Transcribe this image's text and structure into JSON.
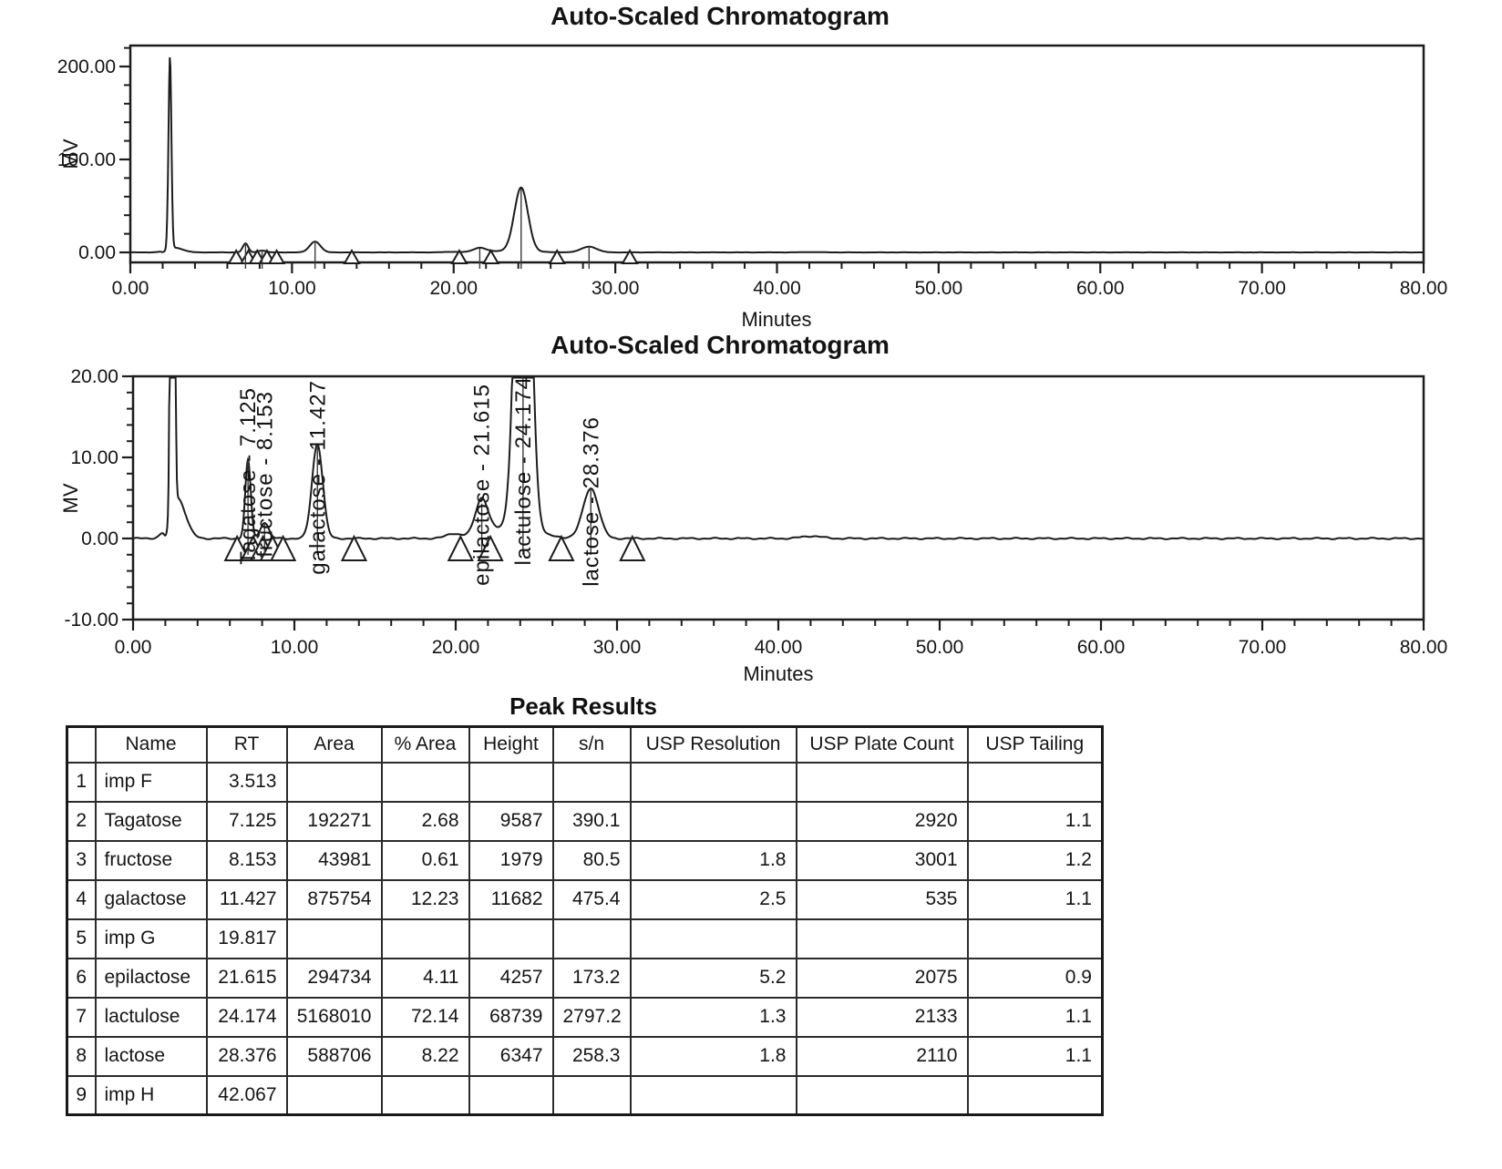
{
  "page": {
    "background": "#ffffff",
    "text_color": "#141414",
    "line_color": "#1c1c1c"
  },
  "chart_data": [
    {
      "type": "line",
      "title": "Auto-Scaled Chromatogram",
      "xlabel": "Minutes",
      "ylabel": "MV",
      "xlim": [
        0,
        80
      ],
      "ylim": [
        -10.8,
        222.5
      ],
      "grid": false,
      "legend": "none",
      "xticks": [
        {
          "v": 0,
          "label": "0.00"
        },
        {
          "v": 10,
          "label": "10.00"
        },
        {
          "v": 20,
          "label": "20.00"
        },
        {
          "v": 30,
          "label": "30.00"
        },
        {
          "v": 40,
          "label": "40.00"
        },
        {
          "v": 50,
          "label": "50.00"
        },
        {
          "v": 60,
          "label": "60.00"
        },
        {
          "v": 70,
          "label": "70.00"
        },
        {
          "v": 80,
          "label": "80.00"
        }
      ],
      "x_minor_step": 2,
      "yticks": [
        {
          "v": 0,
          "label": "0.00"
        },
        {
          "v": 100,
          "label": "100.00"
        },
        {
          "v": 200,
          "label": "200.00"
        }
      ],
      "y_minor_step": 20,
      "peak_labels": [
        {
          "text": "Tagatose - 7.125",
          "rt": 7.125
        },
        {
          "text": "fructose - 8.153",
          "rt": 8.153
        },
        {
          "text": "galactose - 11.427",
          "rt": 11.427
        },
        {
          "text": "epilactose - 21.615",
          "rt": 21.615
        },
        {
          "text": "lactulose - 24.174",
          "rt": 24.174
        },
        {
          "text": "lactose - 28.376",
          "rt": 28.376
        }
      ],
      "integration_markers_min": [
        6.55,
        7.3,
        7.85,
        8.45,
        9.05,
        13.7,
        20.35,
        22.3,
        26.4,
        30.9
      ],
      "trace_peaks": [
        {
          "rt": 2.05,
          "mv": -1.4,
          "sigma": 0.12
        },
        {
          "rt": 2.45,
          "mv": 207,
          "sigma": 0.09
        },
        {
          "rt": 2.75,
          "mv": 5,
          "sigma": 0.5
        },
        {
          "rt": 7.125,
          "mv": 9.6,
          "sigma": 0.17
        },
        {
          "rt": 8.153,
          "mv": 2.0,
          "sigma": 0.25
        },
        {
          "rt": 11.427,
          "mv": 11.7,
          "sigma": 0.33
        },
        {
          "rt": 19.817,
          "mv": 0.5,
          "sigma": 0.4
        },
        {
          "rt": 21.615,
          "mv": 4.3,
          "sigma": 0.38
        },
        {
          "rt": 23.3,
          "mv": 1.3,
          "sigma": 1.6
        },
        {
          "rt": 24.174,
          "mv": 68.7,
          "sigma": 0.42
        },
        {
          "rt": 28.376,
          "mv": 6.2,
          "sigma": 0.48
        },
        {
          "rt": 42.067,
          "mv": 0.3,
          "sigma": 0.6
        }
      ]
    },
    {
      "type": "line",
      "title": "Auto-Scaled Chromatogram",
      "xlabel": "Minutes",
      "ylabel": "MV",
      "xlim": [
        0,
        80
      ],
      "ylim": [
        -10,
        20
      ],
      "grid": false,
      "legend": "none",
      "xticks": [
        {
          "v": 0,
          "label": "0.00"
        },
        {
          "v": 10,
          "label": "10.00"
        },
        {
          "v": 20,
          "label": "20.00"
        },
        {
          "v": 30,
          "label": "30.00"
        },
        {
          "v": 40,
          "label": "40.00"
        },
        {
          "v": 50,
          "label": "50.00"
        },
        {
          "v": 60,
          "label": "60.00"
        },
        {
          "v": 70,
          "label": "70.00"
        },
        {
          "v": 80,
          "label": "80.00"
        }
      ],
      "x_minor_step": 2,
      "yticks": [
        {
          "v": -10,
          "label": "-10.00"
        },
        {
          "v": 0,
          "label": "0.00"
        },
        {
          "v": 10,
          "label": "10.00"
        },
        {
          "v": 20,
          "label": "20.00"
        }
      ],
      "y_minor_step": 2,
      "peak_labels": [
        {
          "text": "Tagatose - 7.125",
          "rt": 7.125
        },
        {
          "text": "fructose - 8.153",
          "rt": 8.153
        },
        {
          "text": "galactose - 11.427",
          "rt": 11.427
        },
        {
          "text": "epilactose - 21.615",
          "rt": 21.615
        },
        {
          "text": "lactulose - 24.174",
          "rt": 24.174
        },
        {
          "text": "lactose - 28.376",
          "rt": 28.376
        }
      ],
      "label_top_offsets": [
        12,
        16,
        4,
        8,
        0,
        44
      ],
      "integration_markers_min": [
        6.45,
        7.45,
        8.05,
        8.65,
        9.3,
        13.7,
        20.3,
        22.15,
        26.55,
        30.95
      ],
      "trace_peaks": [
        {
          "rt": 2.05,
          "mv": -1.4,
          "sigma": 0.12
        },
        {
          "rt": 2.45,
          "mv": 207,
          "sigma": 0.09
        },
        {
          "rt": 2.75,
          "mv": 5,
          "sigma": 0.5
        },
        {
          "rt": 7.125,
          "mv": 9.6,
          "sigma": 0.17
        },
        {
          "rt": 8.153,
          "mv": 2.0,
          "sigma": 0.25
        },
        {
          "rt": 11.427,
          "mv": 11.7,
          "sigma": 0.33
        },
        {
          "rt": 19.817,
          "mv": 0.5,
          "sigma": 0.4
        },
        {
          "rt": 21.615,
          "mv": 4.3,
          "sigma": 0.38
        },
        {
          "rt": 23.3,
          "mv": 1.3,
          "sigma": 1.6
        },
        {
          "rt": 24.174,
          "mv": 68.7,
          "sigma": 0.42
        },
        {
          "rt": 28.376,
          "mv": 6.2,
          "sigma": 0.48
        },
        {
          "rt": 42.067,
          "mv": 0.3,
          "sigma": 0.6
        }
      ]
    },
    {
      "type": "table",
      "title": "Peak Results",
      "columns": [
        "",
        "Name",
        "RT",
        "Area",
        "% Area",
        "Height",
        "s/n",
        "USP Resolution",
        "USP Plate Count",
        "USP Tailing"
      ],
      "rows": [
        [
          "1",
          "imp F",
          "3.513",
          "",
          "",
          "",
          "",
          "",
          "",
          ""
        ],
        [
          "2",
          "Tagatose",
          "7.125",
          "192271",
          "2.68",
          "9587",
          "390.1",
          "",
          "2920",
          "1.1"
        ],
        [
          "3",
          "fructose",
          "8.153",
          "43981",
          "0.61",
          "1979",
          "80.5",
          "1.8",
          "3001",
          "1.2"
        ],
        [
          "4",
          "galactose",
          "11.427",
          "875754",
          "12.23",
          "11682",
          "475.4",
          "2.5",
          "535",
          "1.1"
        ],
        [
          "5",
          "imp G",
          "19.817",
          "",
          "",
          "",
          "",
          "",
          "",
          ""
        ],
        [
          "6",
          "epilactose",
          "21.615",
          "294734",
          "4.11",
          "4257",
          "173.2",
          "5.2",
          "2075",
          "0.9"
        ],
        [
          "7",
          "lactulose",
          "24.174",
          "5168010",
          "72.14",
          "68739",
          "2797.2",
          "1.3",
          "2133",
          "1.1"
        ],
        [
          "8",
          "lactose",
          "28.376",
          "588706",
          "8.22",
          "6347",
          "258.3",
          "1.8",
          "2110",
          "1.1"
        ],
        [
          "9",
          "imp H",
          "42.067",
          "",
          "",
          "",
          "",
          "",
          "",
          ""
        ]
      ]
    }
  ]
}
